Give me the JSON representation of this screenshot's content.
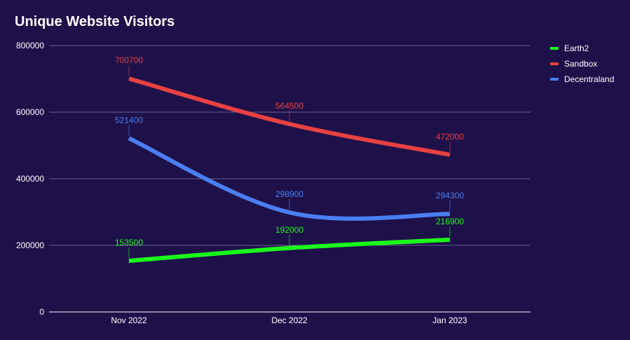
{
  "colors": {
    "background": "#1e1149",
    "grid": "#6b5f94",
    "axis": "#ffffff"
  },
  "chart_data": {
    "type": "line",
    "title": "Unique Website Visitors",
    "xlabel": "",
    "ylabel": "",
    "categories": [
      "Nov 2022",
      "Dec 2022",
      "Jan 2023"
    ],
    "ylim": [
      0,
      800000
    ],
    "yticks": [
      0,
      200000,
      400000,
      600000,
      800000
    ],
    "grid": true,
    "legend_position": "right",
    "smooth": true,
    "series": [
      {
        "name": "Earth2",
        "color": "#1aff1a",
        "values": [
          153500,
          192000,
          216900
        ]
      },
      {
        "name": "Sandbox",
        "color": "#e84141",
        "values": [
          700700,
          564500,
          472000
        ]
      },
      {
        "name": "Decentraland",
        "color": "#4b7ef2",
        "values": [
          521400,
          298900,
          294300
        ]
      }
    ]
  }
}
